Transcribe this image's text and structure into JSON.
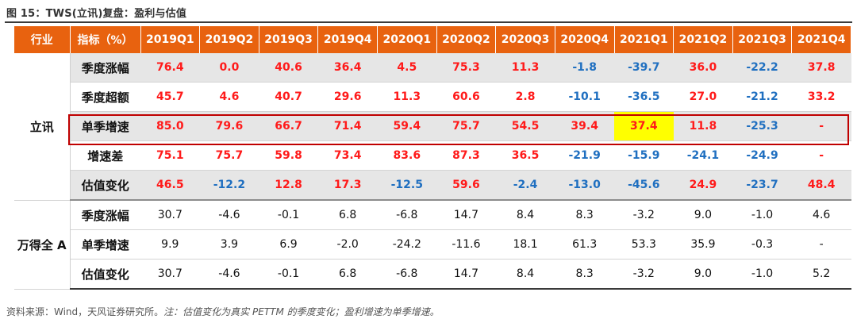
{
  "title": "图 15：TWS(立讯)复盘：盈利与估值",
  "colors": {
    "header_bg": "#e8620f",
    "positive": "#ff1a1a",
    "negative": "#1f6fc0",
    "shade": "#e6e6e6",
    "highlight": "#ffff00",
    "box": "#c00000"
  },
  "header": [
    "行业",
    "指标（%）",
    "2019Q1",
    "2019Q2",
    "2019Q3",
    "2019Q4",
    "2020Q1",
    "2020Q2",
    "2020Q3",
    "2020Q4",
    "2021Q1",
    "2021Q2",
    "2021Q3",
    "2021Q4"
  ],
  "groups": [
    {
      "name": "立讯",
      "rows": [
        {
          "label": "季度涨幅",
          "shade": true,
          "values": [
            "76.4",
            "0.0",
            "40.6",
            "36.4",
            "4.5",
            "75.3",
            "11.3",
            "-1.8",
            "-39.7",
            "36.0",
            "-22.2",
            "37.8"
          ]
        },
        {
          "label": "季度超额",
          "shade": false,
          "values": [
            "45.7",
            "4.6",
            "40.7",
            "29.6",
            "11.3",
            "60.6",
            "2.8",
            "-10.1",
            "-36.5",
            "27.0",
            "-21.2",
            "33.2"
          ]
        },
        {
          "label": "单季增速",
          "shade": true,
          "values": [
            "85.0",
            "79.6",
            "66.7",
            "71.4",
            "59.4",
            "75.7",
            "54.5",
            "39.4",
            "37.4",
            "11.8",
            "-25.3",
            "-"
          ]
        },
        {
          "label": "增速差",
          "shade": false,
          "values": [
            "75.1",
            "75.7",
            "59.8",
            "73.4",
            "83.6",
            "87.3",
            "36.5",
            "-21.9",
            "-15.9",
            "-24.1",
            "-24.9",
            "-"
          ]
        },
        {
          "label": "估值变化",
          "shade": true,
          "values": [
            "46.5",
            "-12.2",
            "12.8",
            "17.3",
            "-12.5",
            "59.6",
            "-2.4",
            "-13.0",
            "-45.6",
            "24.9",
            "-23.7",
            "48.4"
          ]
        }
      ]
    },
    {
      "name": "万得全 A",
      "rows": [
        {
          "label": "季度涨幅",
          "shade": false,
          "values": [
            "30.7",
            "-4.6",
            "-0.1",
            "6.8",
            "-6.8",
            "14.7",
            "8.4",
            "8.3",
            "-3.2",
            "9.0",
            "-1.0",
            "4.6"
          ]
        },
        {
          "label": "单季增速",
          "shade": false,
          "values": [
            "9.9",
            "3.9",
            "6.9",
            "-2.0",
            "-24.2",
            "-11.6",
            "18.1",
            "61.3",
            "53.3",
            "35.9",
            "-0.3",
            "-"
          ]
        },
        {
          "label": "估值变化",
          "shade": false,
          "values": [
            "30.7",
            "-4.6",
            "-0.1",
            "6.8",
            "-6.8",
            "14.7",
            "8.4",
            "8.3",
            "-3.2",
            "9.0",
            "-1.0",
            "5.2"
          ]
        }
      ]
    }
  ],
  "highlight_cell": {
    "row_label": "单季增速",
    "column": "2021Q1",
    "value": "37.4"
  },
  "source": {
    "text": "资料来源：Wind，天风证券研究所。",
    "note": "注：估值变化为真实 PETTM 的季度变化；盈利增速为单季增速。"
  }
}
